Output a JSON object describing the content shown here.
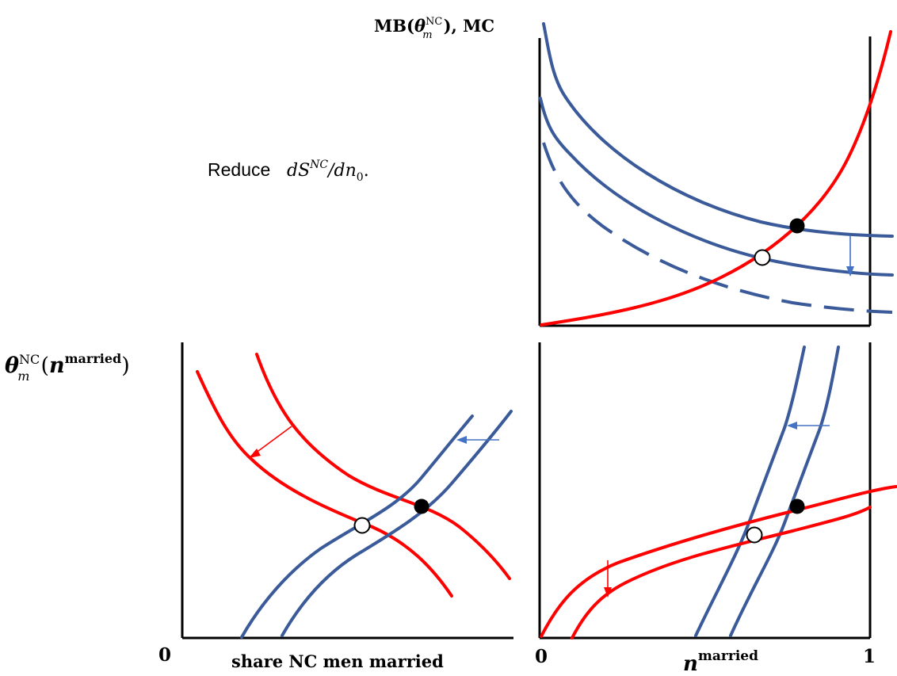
{
  "annotation": {
    "prefix": "Reduce",
    "formula_main": "dS",
    "formula_sup": "NC",
    "formula_div": "/dn",
    "formula_sub": "0",
    "formula_end": "."
  },
  "top_panel": {
    "ylabel_main": "MB(",
    "ylabel_theta": "θ",
    "ylabel_sub": "m",
    "ylabel_sup": "NC",
    "ylabel_end": "), MC"
  },
  "bottom_left_panel": {
    "ylabel_theta": "θ",
    "ylabel_sub": "m",
    "ylabel_sup": "NC",
    "ylabel_open": "(",
    "ylabel_n": "n",
    "ylabel_n_sup": "married",
    "ylabel_close": ")",
    "xlabel": "share NC men married",
    "origin": "0"
  },
  "bottom_right_panel": {
    "xlabel_n": "n",
    "xlabel_sup": "married",
    "tick_left": "0",
    "tick_right": "1"
  },
  "colors": {
    "curve_red": "#ff0000",
    "curve_blue": "#3a5a99",
    "arrow_blue": "#4472c4"
  }
}
